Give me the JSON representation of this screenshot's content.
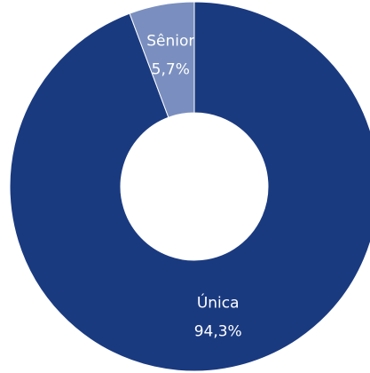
{
  "chart_data": {
    "type": "pie",
    "categories": [
      "Única",
      "Sênior"
    ],
    "values": [
      94.3,
      5.7
    ],
    "value_labels": [
      "94,3%",
      "5,7%"
    ],
    "colors": [
      "#1a3a80",
      "#7a8fbf"
    ],
    "donut": true
  }
}
